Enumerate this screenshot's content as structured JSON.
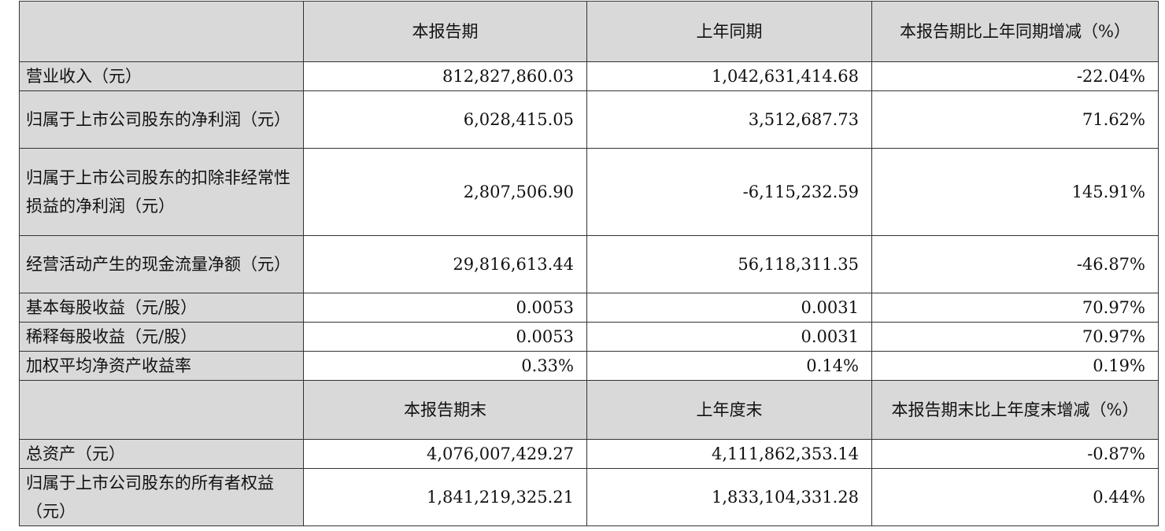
{
  "header1": [
    "",
    "本报告期",
    "上年同期",
    "本报告期比上年同期增减（%）"
  ],
  "rows1": [
    {
      "label": "营业收入（元）",
      "current": "812,827,860.03",
      "prior": "1,042,631,414.68",
      "change": "-22.04%"
    },
    {
      "label": "归属于上市公司股东的净利润（元）",
      "current": "6,028,415.05",
      "prior": "3,512,687.73",
      "change": "71.62%"
    },
    {
      "label": "归属于上市公司股东的扣除非经常性损益的净利润（元）",
      "current": "2,807,506.90",
      "prior": "-6,115,232.59",
      "change": "145.91%"
    },
    {
      "label": "经营活动产生的现金流量净额（元）",
      "current": "29,816,613.44",
      "prior": "56,118,311.35",
      "change": "-46.87%"
    },
    {
      "label": "基本每股收益（元/股）",
      "current": "0.0053",
      "prior": "0.0031",
      "change": "70.97%"
    },
    {
      "label": "稀释每股收益（元/股）",
      "current": "0.0053",
      "prior": "0.0031",
      "change": "70.97%"
    },
    {
      "label": "加权平均净资产收益率",
      "current": "0.33%",
      "prior": "0.14%",
      "change": "0.19%"
    }
  ],
  "header2": [
    "",
    "本报告期末",
    "上年度末",
    "本报告期末比上年度末增减（%）"
  ],
  "rows2": [
    {
      "label": "总资产（元）",
      "current": "4,076,007,429.27",
      "prior": "4,111,862,353.14",
      "change": "-0.87%"
    },
    {
      "label": "归属于上市公司股东的所有者权益（元）",
      "current": "1,841,219,325.21",
      "prior": "1,833,104,331.28",
      "change": "0.44%"
    }
  ]
}
